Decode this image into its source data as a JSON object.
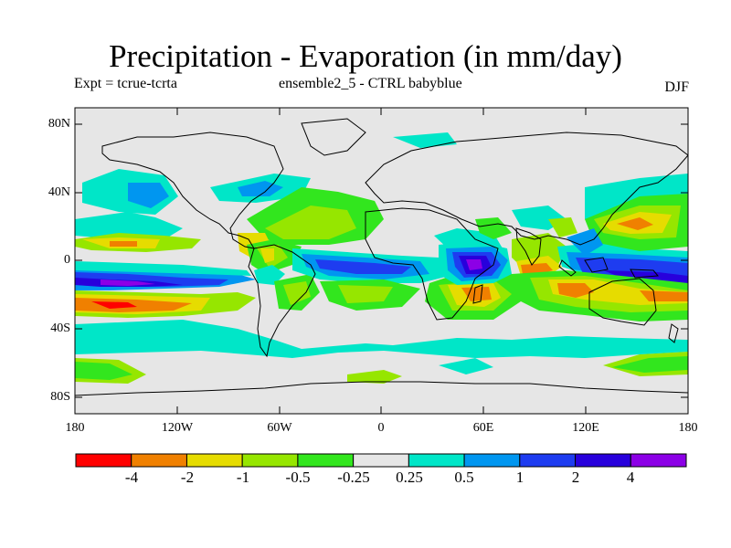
{
  "title": "Precipitation - Evaporation (in mm/day)",
  "experiment": "Expt = tcrue-tcrta",
  "subtitle": "ensemble2_5 - CTRL babyblue",
  "season": "DJF",
  "map": {
    "lat_labels": [
      "80N",
      "40N",
      "0",
      "40S",
      "80S"
    ],
    "lon_labels": [
      "180",
      "120W",
      "60W",
      "0",
      "60E",
      "120E",
      "180"
    ],
    "background_color": "#e6e6e6"
  },
  "colorbar": {
    "labels": [
      "-4",
      "-2",
      "-1",
      "-0.5",
      "-0.25",
      "0.25",
      "0.5",
      "1",
      "2",
      "4"
    ],
    "colors": [
      "#ff0000",
      "#f08000",
      "#e6dc00",
      "#96e600",
      "#32e61e",
      "#e6e6e6",
      "#00e6c8",
      "#0096f0",
      "#1e3cf0",
      "#2800dc",
      "#8c00e6"
    ]
  }
}
